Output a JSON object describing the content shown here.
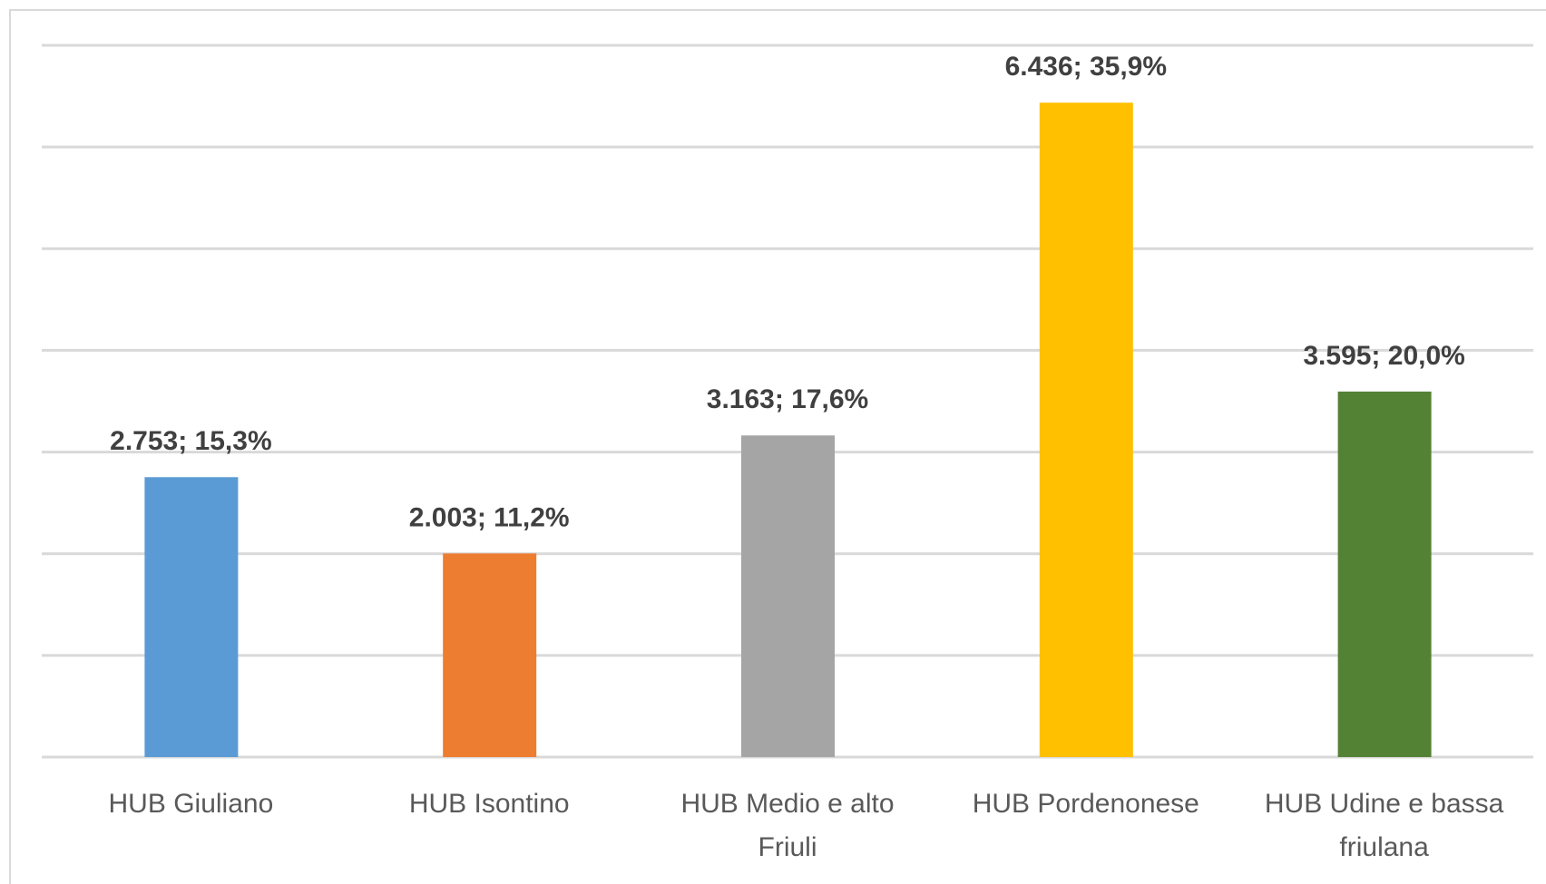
{
  "chart_data": {
    "type": "bar",
    "categories": [
      "HUB Giuliano",
      "HUB Isontino",
      "HUB Medio e alto Friuli",
      "HUB Pordenonese",
      "HUB Udine e bassa friulana"
    ],
    "values": [
      2753,
      2003,
      3163,
      6436,
      3595
    ],
    "value_labels": [
      "2.753; 15,3%",
      "2.003; 11,2%",
      "3.163; 17,6%",
      "6.436; 35,9%",
      "3.595; 20,0%"
    ],
    "colors": [
      "#5b9bd5",
      "#ed7d31",
      "#a5a5a5",
      "#ffc000",
      "#548235"
    ],
    "ylim": [
      0,
      7000
    ],
    "yticks": [
      0,
      1000,
      2000,
      3000,
      4000,
      5000,
      6000,
      7000
    ],
    "grid": true
  }
}
